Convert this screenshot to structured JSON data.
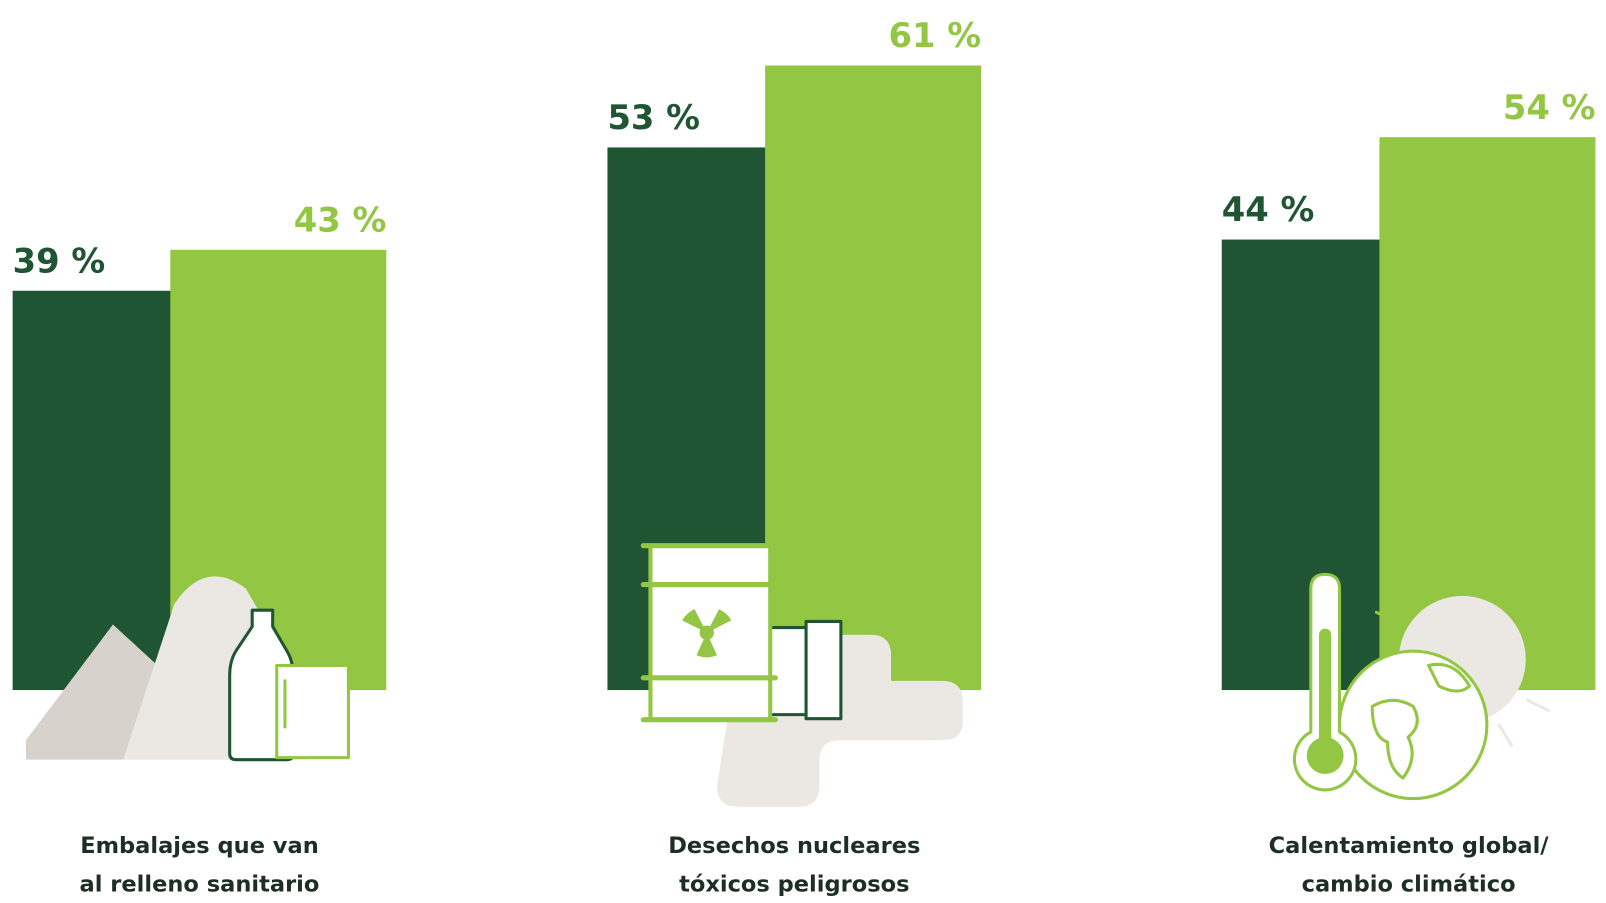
{
  "chart_data": {
    "type": "bar",
    "categories": [
      "Embalajes que van\nal relleno sanitario",
      "Desechos nucleares\ntóxicos peligrosos",
      "Calentamiento global/\ncambio climático"
    ],
    "series": [
      {
        "color": "#1f5532",
        "values": [
          39,
          53,
          44
        ],
        "value_labels": [
          "39 %",
          "53 %",
          "44 %"
        ]
      },
      {
        "color": "#93c642",
        "values": [
          43,
          61,
          54
        ],
        "value_labels": [
          "43 %",
          "61 %",
          "54 %"
        ]
      }
    ],
    "ylim": [
      0,
      65
    ]
  }
}
